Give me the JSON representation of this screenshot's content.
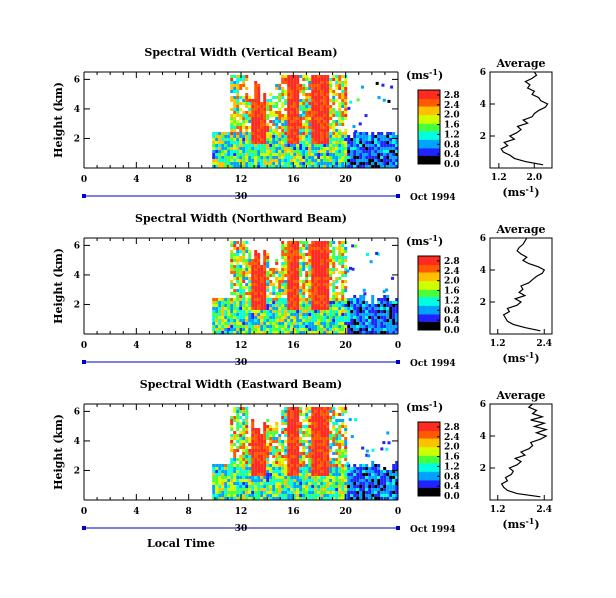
{
  "chart_data": [
    {
      "type": "heatmap",
      "title": "Spectral Width (Vertical Beam)",
      "ylabel": "Height (km)",
      "x_ticks": [
        "0",
        "4",
        "8",
        "12",
        "16",
        "20",
        "0"
      ],
      "xlim": [
        0,
        24
      ],
      "y_ticks": [
        "2",
        "4",
        "6"
      ],
      "ylim": [
        0,
        6.5
      ],
      "date_day": "30",
      "date_label": "Oct 1994",
      "colorbar": {
        "unit": "(ms",
        "exponent": "-1",
        "closing": ")",
        "ticks": [
          "0.0",
          "0.4",
          "0.8",
          "1.2",
          "1.6",
          "2.0",
          "2.4",
          "2.8"
        ],
        "range": [
          0,
          3.0
        ]
      },
      "echo_start_hour": 9.8,
      "average": {
        "title": "Average",
        "xlabel": "(ms",
        "xlabel_exponent": "-1",
        "xlabel_closing": ")",
        "x_ticks": [
          "1.2",
          "2.0"
        ],
        "xlim": [
          1.0,
          2.4
        ],
        "y_ticks": [
          "2",
          "4",
          "6"
        ],
        "ylim": [
          0,
          6
        ],
        "profile": [
          {
            "h": 0.2,
            "v": 2.2
          },
          {
            "h": 0.4,
            "v": 1.8
          },
          {
            "h": 0.6,
            "v": 1.55
          },
          {
            "h": 0.8,
            "v": 1.45
          },
          {
            "h": 1.0,
            "v": 1.3
          },
          {
            "h": 1.2,
            "v": 1.25
          },
          {
            "h": 1.4,
            "v": 1.4
          },
          {
            "h": 1.6,
            "v": 1.32
          },
          {
            "h": 1.8,
            "v": 1.55
          },
          {
            "h": 2.0,
            "v": 1.45
          },
          {
            "h": 2.2,
            "v": 1.6
          },
          {
            "h": 2.4,
            "v": 1.7
          },
          {
            "h": 2.6,
            "v": 1.62
          },
          {
            "h": 2.8,
            "v": 1.85
          },
          {
            "h": 3.0,
            "v": 1.75
          },
          {
            "h": 3.2,
            "v": 1.95
          },
          {
            "h": 3.4,
            "v": 2.0
          },
          {
            "h": 3.6,
            "v": 2.1
          },
          {
            "h": 3.8,
            "v": 2.25
          },
          {
            "h": 4.0,
            "v": 2.3
          },
          {
            "h": 4.2,
            "v": 2.15
          },
          {
            "h": 4.4,
            "v": 2.1
          },
          {
            "h": 4.6,
            "v": 1.95
          },
          {
            "h": 4.8,
            "v": 2.0
          },
          {
            "h": 5.0,
            "v": 1.85
          },
          {
            "h": 5.2,
            "v": 1.9
          },
          {
            "h": 5.4,
            "v": 1.8
          },
          {
            "h": 5.6,
            "v": 1.95
          },
          {
            "h": 5.8,
            "v": 2.05
          },
          {
            "h": 6.0,
            "v": 2.0
          }
        ]
      }
    },
    {
      "type": "heatmap",
      "title": "Spectral Width (Northward Beam)",
      "ylabel": "Height (km)",
      "x_ticks": [
        "0",
        "4",
        "8",
        "12",
        "16",
        "20",
        "0"
      ],
      "xlim": [
        0,
        24
      ],
      "y_ticks": [
        "2",
        "4",
        "6"
      ],
      "ylim": [
        0,
        6.5
      ],
      "date_day": "30",
      "date_label": "Oct 1994",
      "colorbar": {
        "unit": "(ms",
        "exponent": "-1",
        "closing": ")",
        "ticks": [
          "0.0",
          "0.4",
          "0.8",
          "1.2",
          "1.6",
          "2.0",
          "2.4",
          "2.8"
        ],
        "range": [
          0,
          3.0
        ]
      },
      "echo_start_hour": 9.8,
      "average": {
        "title": "Average",
        "xlabel": "(ms",
        "xlabel_exponent": "-1",
        "xlabel_closing": ")",
        "x_ticks": [
          "1.2",
          "2.4"
        ],
        "xlim": [
          1.0,
          2.6
        ],
        "y_ticks": [
          "2",
          "4",
          "6"
        ],
        "ylim": [
          0,
          6
        ],
        "profile": [
          {
            "h": 0.2,
            "v": 2.3
          },
          {
            "h": 0.4,
            "v": 1.9
          },
          {
            "h": 0.6,
            "v": 1.6
          },
          {
            "h": 0.8,
            "v": 1.45
          },
          {
            "h": 1.0,
            "v": 1.4
          },
          {
            "h": 1.2,
            "v": 1.35
          },
          {
            "h": 1.4,
            "v": 1.5
          },
          {
            "h": 1.6,
            "v": 1.45
          },
          {
            "h": 1.8,
            "v": 1.7
          },
          {
            "h": 2.0,
            "v": 1.8
          },
          {
            "h": 2.2,
            "v": 1.65
          },
          {
            "h": 2.4,
            "v": 1.9
          },
          {
            "h": 2.6,
            "v": 1.75
          },
          {
            "h": 2.8,
            "v": 1.85
          },
          {
            "h": 3.0,
            "v": 1.8
          },
          {
            "h": 3.2,
            "v": 2.0
          },
          {
            "h": 3.4,
            "v": 2.1
          },
          {
            "h": 3.6,
            "v": 2.2
          },
          {
            "h": 3.8,
            "v": 2.35
          },
          {
            "h": 4.0,
            "v": 2.4
          },
          {
            "h": 4.2,
            "v": 2.25
          },
          {
            "h": 4.4,
            "v": 2.0
          },
          {
            "h": 4.6,
            "v": 1.85
          },
          {
            "h": 4.8,
            "v": 1.95
          },
          {
            "h": 5.0,
            "v": 1.8
          },
          {
            "h": 5.2,
            "v": 1.7
          },
          {
            "h": 5.4,
            "v": 1.75
          },
          {
            "h": 5.6,
            "v": 1.85
          },
          {
            "h": 5.8,
            "v": 1.9
          },
          {
            "h": 6.0,
            "v": 1.95
          }
        ]
      }
    },
    {
      "type": "heatmap",
      "title": "Spectral Width (Eastward Beam)",
      "ylabel": "Height (km)",
      "xlabel": "Local Time",
      "x_ticks": [
        "0",
        "4",
        "8",
        "12",
        "16",
        "20",
        "0"
      ],
      "xlim": [
        0,
        24
      ],
      "y_ticks": [
        "2",
        "4",
        "6"
      ],
      "ylim": [
        0,
        6.5
      ],
      "date_day": "30",
      "date_label": "Oct 1994",
      "colorbar": {
        "unit": "(ms",
        "exponent": "-1",
        "closing": ")",
        "ticks": [
          "0.0",
          "0.4",
          "0.8",
          "1.2",
          "1.6",
          "2.0",
          "2.4",
          "2.8"
        ],
        "range": [
          0,
          3.0
        ]
      },
      "echo_start_hour": 9.8,
      "average": {
        "title": "Average",
        "xlabel": "(ms",
        "xlabel_exponent": "-1",
        "xlabel_closing": ")",
        "x_ticks": [
          "1.2",
          "2.4"
        ],
        "xlim": [
          1.0,
          2.6
        ],
        "y_ticks": [
          "2",
          "4",
          "6"
        ],
        "ylim": [
          0,
          6
        ],
        "profile": [
          {
            "h": 0.2,
            "v": 2.3
          },
          {
            "h": 0.4,
            "v": 1.7
          },
          {
            "h": 0.6,
            "v": 1.45
          },
          {
            "h": 0.8,
            "v": 1.35
          },
          {
            "h": 1.0,
            "v": 1.3
          },
          {
            "h": 1.2,
            "v": 1.45
          },
          {
            "h": 1.4,
            "v": 1.4
          },
          {
            "h": 1.6,
            "v": 1.55
          },
          {
            "h": 1.8,
            "v": 1.6
          },
          {
            "h": 2.0,
            "v": 1.5
          },
          {
            "h": 2.2,
            "v": 1.7
          },
          {
            "h": 2.4,
            "v": 1.8
          },
          {
            "h": 2.6,
            "v": 1.65
          },
          {
            "h": 2.8,
            "v": 1.9
          },
          {
            "h": 3.0,
            "v": 1.8
          },
          {
            "h": 3.2,
            "v": 2.0
          },
          {
            "h": 3.4,
            "v": 2.1
          },
          {
            "h": 3.6,
            "v": 2.05
          },
          {
            "h": 3.8,
            "v": 2.3
          },
          {
            "h": 4.0,
            "v": 2.45
          },
          {
            "h": 4.2,
            "v": 2.2
          },
          {
            "h": 4.4,
            "v": 2.45
          },
          {
            "h": 4.6,
            "v": 2.15
          },
          {
            "h": 4.8,
            "v": 2.4
          },
          {
            "h": 5.0,
            "v": 2.05
          },
          {
            "h": 5.2,
            "v": 2.35
          },
          {
            "h": 5.4,
            "v": 2.1
          },
          {
            "h": 5.6,
            "v": 2.2
          },
          {
            "h": 5.8,
            "v": 2.0
          },
          {
            "h": 6.0,
            "v": 2.1
          }
        ]
      }
    }
  ],
  "colors": {
    "scale": [
      "#000000",
      "#2323ff",
      "#00a2ff",
      "#00ffdf",
      "#48ff3a",
      "#d0ff00",
      "#ffc000",
      "#ff5a00",
      "#ff2a20"
    ],
    "axis": "#000000",
    "date_bar": "#0000c0"
  }
}
